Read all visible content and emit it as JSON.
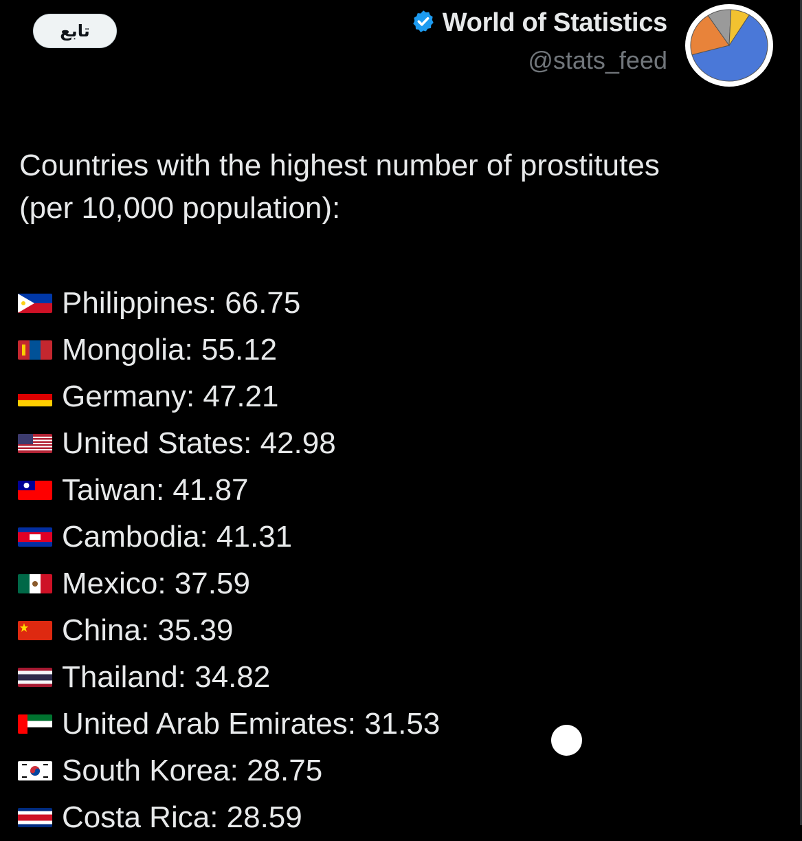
{
  "follow_button": {
    "label": "تابع"
  },
  "author": {
    "display_name": "World of Statistics",
    "handle": "@stats_feed",
    "verified_icon": "verified-badge-icon",
    "avatar": {
      "icon": "pie-chart-avatar-icon",
      "slices": [
        {
          "color": "#4a78d8",
          "fraction": 0.62
        },
        {
          "color": "#e8833a",
          "fraction": 0.2
        },
        {
          "color": "#9a9a9a",
          "fraction": 0.1
        },
        {
          "color": "#f2c230",
          "fraction": 0.08
        }
      ]
    }
  },
  "tweet": {
    "line1": "Countries with the highest number of prostitutes",
    "line2": "(per 10,000 population):"
  },
  "list": [
    {
      "flag": "PH",
      "text": "Philippines: 66.75"
    },
    {
      "flag": "MN",
      "text": "Mongolia: 55.12"
    },
    {
      "flag": "DE",
      "text": "Germany: 47.21"
    },
    {
      "flag": "US",
      "text": "United States: 42.98"
    },
    {
      "flag": "TW",
      "text": "Taiwan: 41.87"
    },
    {
      "flag": "KH",
      "text": "Cambodia: 41.31"
    },
    {
      "flag": "MX",
      "text": "Mexico: 37.59"
    },
    {
      "flag": "CN",
      "text": "China: 35.39"
    },
    {
      "flag": "TH",
      "text": "Thailand: 34.82"
    },
    {
      "flag": "AE",
      "text": "United Arab Emirates: 31.53"
    },
    {
      "flag": "KR",
      "text": "South Korea: 28.75"
    },
    {
      "flag": "CR",
      "text": "Costa Rica: 28.59"
    }
  ]
}
